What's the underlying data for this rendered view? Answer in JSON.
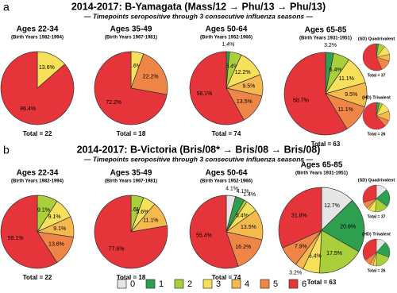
{
  "figure": {
    "panels": [
      {
        "label": "a",
        "title": "2014-2017: B-Yamagata (Mass/12 → Phu/13 → Phu/13)",
        "subtitle": "— Timepoints seropositive through 3 consecutive influenza seasons —"
      },
      {
        "label": "b",
        "title": "2014-2017: B-Victoria (Bris/08* → Bris/08 → Bris/08)",
        "subtitle": "— Timepoints seropositive through 3 consecutive influenza seasons —"
      }
    ],
    "legend": {
      "categories": [
        "0",
        "1",
        "2",
        "3",
        "4",
        "5",
        "6"
      ],
      "colors": [
        "#e6e6e6",
        "#2e9e4f",
        "#a9cf3a",
        "#f7e15a",
        "#f6b94e",
        "#ef8647",
        "#e5353a"
      ]
    }
  },
  "chart_data": [
    {
      "type": "pie",
      "title": "Ages 22-34",
      "subtitle": "(Birth Years 1982-1994)",
      "footer": "Total = 22",
      "values": [
        13.6,
        86.4
      ],
      "value_labels": [
        "13.6%",
        "86.4%"
      ],
      "colors": [
        "#f7e15a",
        "#e5353a"
      ]
    },
    {
      "type": "pie",
      "title": "Ages 35-49",
      "subtitle": "(Birth Years 1967-1981)",
      "footer": "Total = 18",
      "values": [
        5.6,
        22.2,
        72.2
      ],
      "value_labels": [
        "5.6%",
        "22.2%",
        "72.2%"
      ],
      "colors": [
        "#f7e15a",
        "#ef8647",
        "#e5353a"
      ]
    },
    {
      "type": "pie",
      "title": "Ages 50-64",
      "subtitle": "(Birth Years 1952-1966)",
      "footer": "Total = 74",
      "values": [
        1.4,
        5.4,
        12.2,
        9.5,
        13.5,
        58.1
      ],
      "value_labels": [
        "1.4%",
        "5.4%",
        "12.2%",
        "9.5%",
        "13.5%",
        "58.1%"
      ],
      "colors": [
        "#2e9e4f",
        "#a9cf3a",
        "#f7e15a",
        "#f6b94e",
        "#ef8647",
        "#e5353a"
      ]
    },
    {
      "type": "pie",
      "title": "Ages 65-85",
      "subtitle": "(Birth Years 1931-1951)",
      "footer": "Total = 63",
      "values": [
        3.2,
        6.4,
        11.1,
        9.5,
        11.1,
        58.7
      ],
      "value_labels": [
        "3.2%",
        "6.4%",
        "11.1%",
        "9.5%",
        "11.1%",
        "58.7%"
      ],
      "colors": [
        "#2e9e4f",
        "#a9cf3a",
        "#f7e15a",
        "#f6b94e",
        "#ef8647",
        "#e5353a"
      ]
    },
    {
      "type": "pie",
      "title": "(SD) Quadrivalent",
      "footer": "Total = 37",
      "values": [
        2.7,
        8.1,
        10.8,
        8.1,
        13.5,
        56.8
      ],
      "colors": [
        "#2e9e4f",
        "#a9cf3a",
        "#f7e15a",
        "#f6b94e",
        "#ef8647",
        "#e5353a"
      ]
    },
    {
      "type": "pie",
      "title": "(HD) Trivalent",
      "footer": "Total = 26",
      "values": [
        3.8,
        3.8,
        11.5,
        11.5,
        7.7,
        61.5
      ],
      "colors": [
        "#2e9e4f",
        "#a9cf3a",
        "#f7e15a",
        "#f6b94e",
        "#ef8647",
        "#e5353a"
      ]
    },
    {
      "type": "pie",
      "title": "Ages 22-34",
      "subtitle": "(Birth Years 1982-1994)",
      "footer": "Total = 22",
      "values": [
        9.1,
        9.1,
        9.1,
        13.6,
        59.1
      ],
      "value_labels": [
        "9.1%",
        "9.1%",
        "9.1%",
        "13.6%",
        "59.1%"
      ],
      "colors": [
        "#a9cf3a",
        "#f7e15a",
        "#f6b94e",
        "#ef8647",
        "#e5353a"
      ]
    },
    {
      "type": "pie",
      "title": "Ages 35-49",
      "subtitle": "(Birth Years 1967-1981)",
      "footer": "Total = 18",
      "values": [
        5.6,
        5.6,
        11.1,
        77.6
      ],
      "value_labels": [
        "5.6%",
        "5.6%",
        "11.1%",
        "77.6%"
      ],
      "colors": [
        "#a9cf3a",
        "#f7e15a",
        "#f6b94e",
        "#e5353a"
      ]
    },
    {
      "type": "pie",
      "title": "Ages 50-64",
      "subtitle": "(Birth Years 1952-1966)",
      "footer": "Total = 74",
      "values": [
        4.1,
        4.1,
        1.4,
        5.4,
        13.5,
        16.2,
        55.4
      ],
      "value_labels": [
        "4.1%",
        "4.1%",
        "1.4%",
        "5.4%",
        "13.5%",
        "16.2%",
        "55.4%"
      ],
      "colors": [
        "#e6e6e6",
        "#2e9e4f",
        "#a9cf3a",
        "#f7e15a",
        "#f6b94e",
        "#ef8647",
        "#e5353a"
      ]
    },
    {
      "type": "pie",
      "title": "Ages 65-85",
      "subtitle": "(Birth Years 1931-1951)",
      "footer": "Total = 63",
      "values": [
        12.7,
        20.6,
        17.5,
        6.4,
        3.2,
        7.9,
        31.8
      ],
      "value_labels": [
        "12.7%",
        "20.6%",
        "17.5%",
        "6.4%",
        "3.2%",
        "7.9%",
        "31.8%"
      ],
      "colors": [
        "#e6e6e6",
        "#2e9e4f",
        "#a9cf3a",
        "#f7e15a",
        "#f6b94e",
        "#ef8647",
        "#e5353a"
      ]
    },
    {
      "type": "pie",
      "title": "(SD) Quadrivalent",
      "footer": "Total = 37",
      "values": [
        13.5,
        21.6,
        16.2,
        8.1,
        2.7,
        8.1,
        29.7
      ],
      "colors": [
        "#e6e6e6",
        "#2e9e4f",
        "#a9cf3a",
        "#f7e15a",
        "#f6b94e",
        "#ef8647",
        "#e5353a"
      ]
    },
    {
      "type": "pie",
      "title": "(HD) Trivalent",
      "footer": "Total = 26",
      "values": [
        11.5,
        19.2,
        19.2,
        3.8,
        3.8,
        7.7,
        34.6
      ],
      "colors": [
        "#e6e6e6",
        "#2e9e4f",
        "#a9cf3a",
        "#f7e15a",
        "#f6b94e",
        "#ef8647",
        "#e5353a"
      ]
    }
  ]
}
